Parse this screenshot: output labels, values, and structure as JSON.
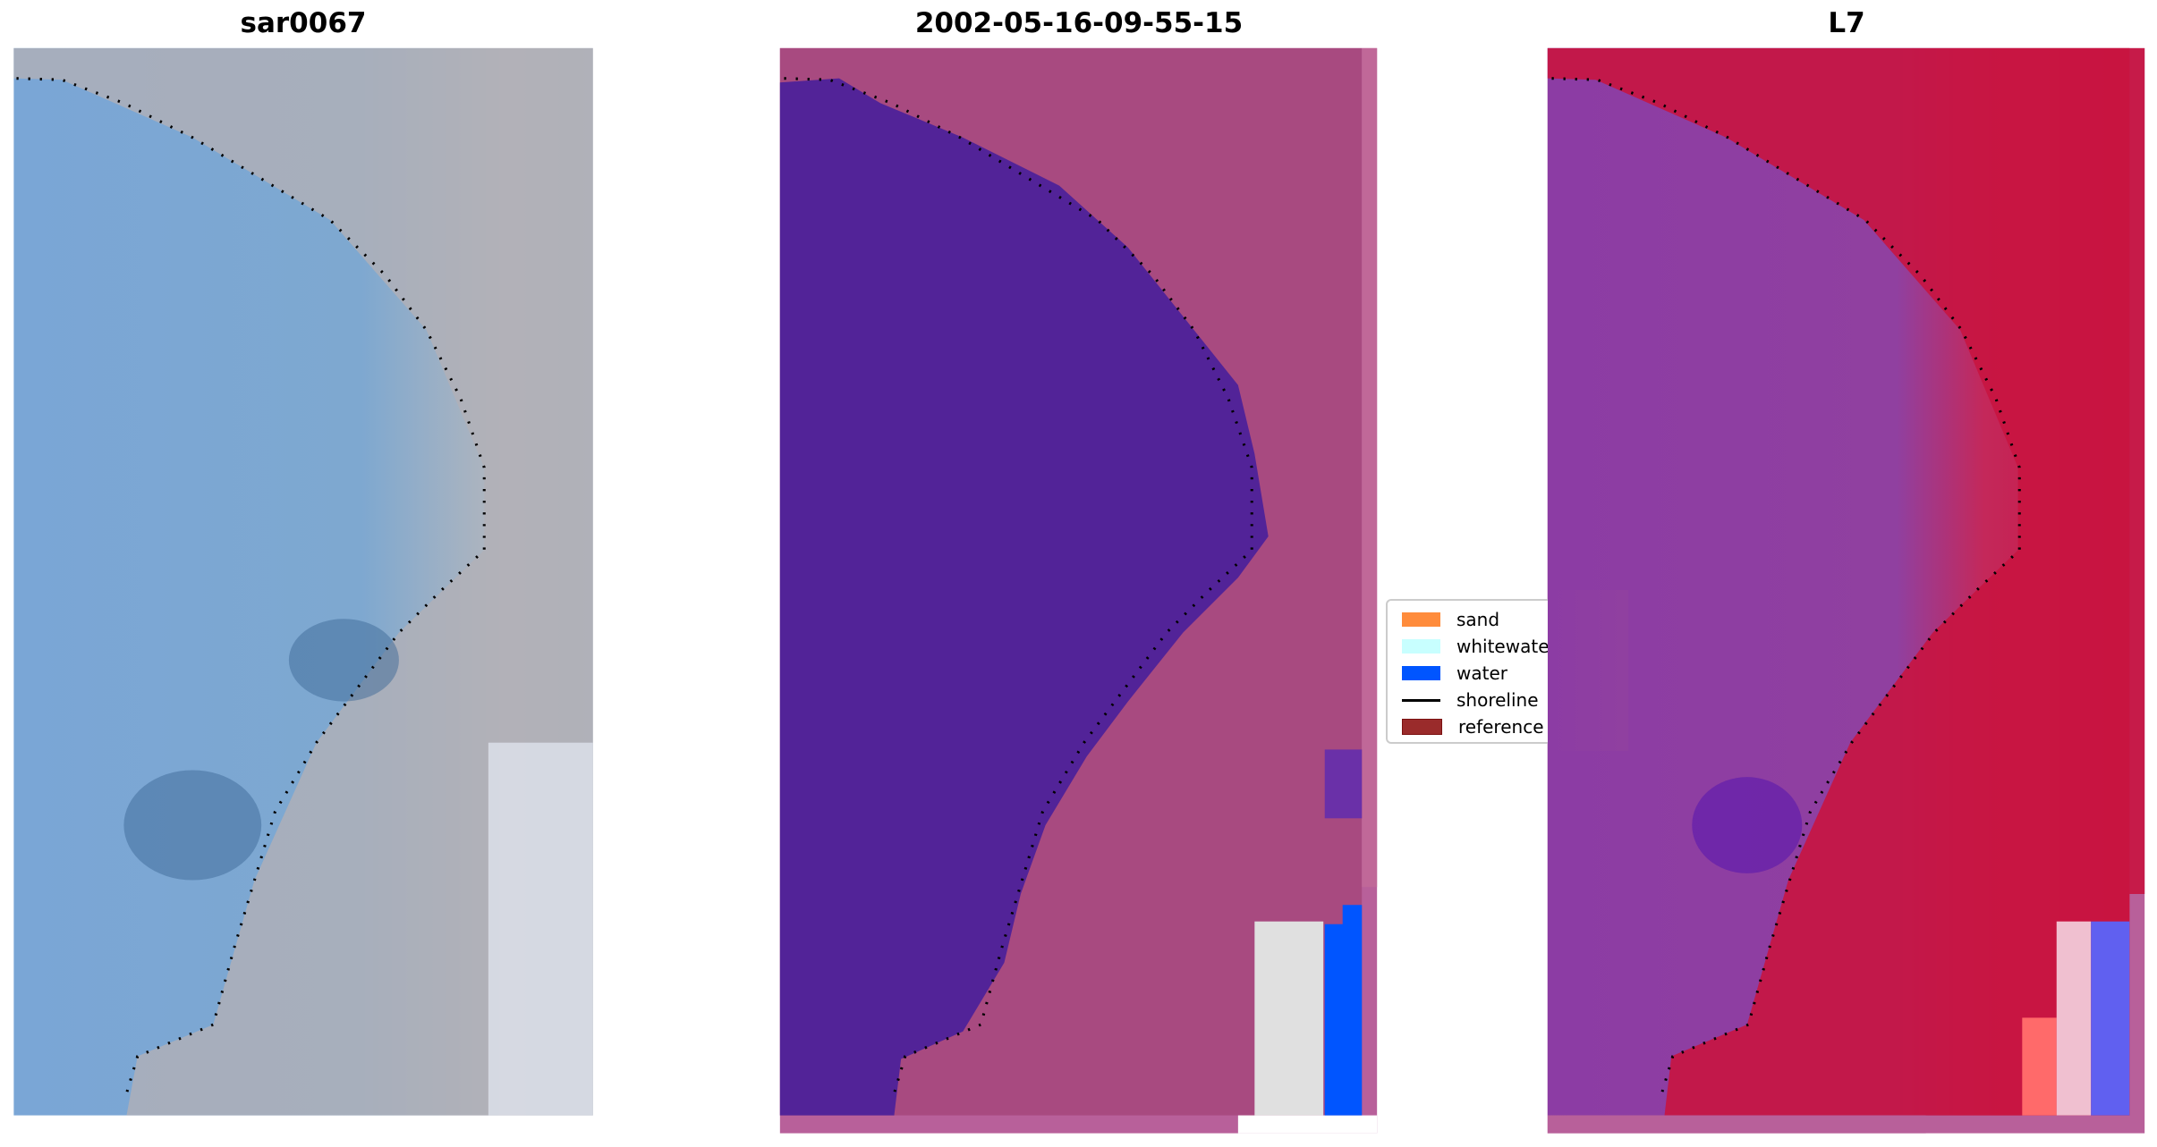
{
  "panels": [
    {
      "title": "sar0067"
    },
    {
      "title": "2002-05-16-09-55-15"
    },
    {
      "title": "L7"
    }
  ],
  "legend": {
    "items": [
      {
        "label": "sand",
        "type": "patch",
        "color": "#ff8c3c"
      },
      {
        "label": "whitewater",
        "type": "patch",
        "color": "#c8ffff"
      },
      {
        "label": "water",
        "type": "patch",
        "color": "#0055ff"
      },
      {
        "label": "shoreline",
        "type": "line",
        "color": "#000000"
      },
      {
        "label": "reference s",
        "type": "patch",
        "color": "#9a2b2b"
      }
    ]
  },
  "colors": {
    "water_class": "#522398",
    "land_overlay": "#a84a80",
    "l7_land": "#c8143c",
    "l7_water": "#8a40a8",
    "sar_water": "#78a8d8",
    "sar_land": "#b4b4bc"
  }
}
